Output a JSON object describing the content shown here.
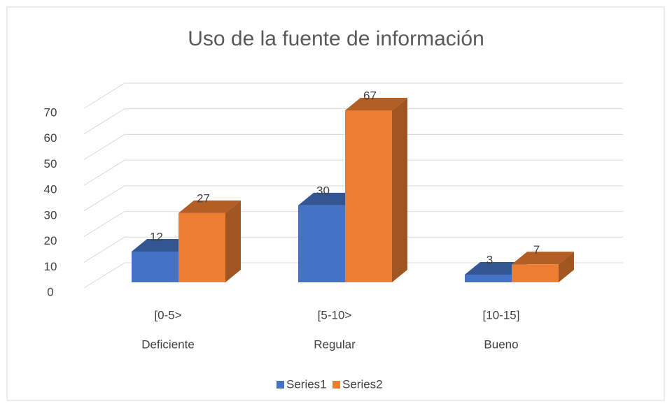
{
  "chart_data": {
    "type": "bar3d",
    "title": "Uso de la fuente de información",
    "categories": [
      "[0-5>",
      "[5-10>",
      "[10-15]"
    ],
    "category_groups": [
      "Deficiente",
      "Regular",
      "Bueno"
    ],
    "series": [
      {
        "name": "Series1",
        "color": "#4472c4",
        "values": [
          12,
          30,
          3
        ]
      },
      {
        "name": "Series2",
        "color": "#ed7d31",
        "values": [
          27,
          67,
          7
        ]
      }
    ],
    "ylim": [
      0,
      70
    ],
    "yticks": [
      0,
      10,
      20,
      30,
      40,
      50,
      60,
      70
    ],
    "grid": true,
    "legend": "bottom"
  }
}
